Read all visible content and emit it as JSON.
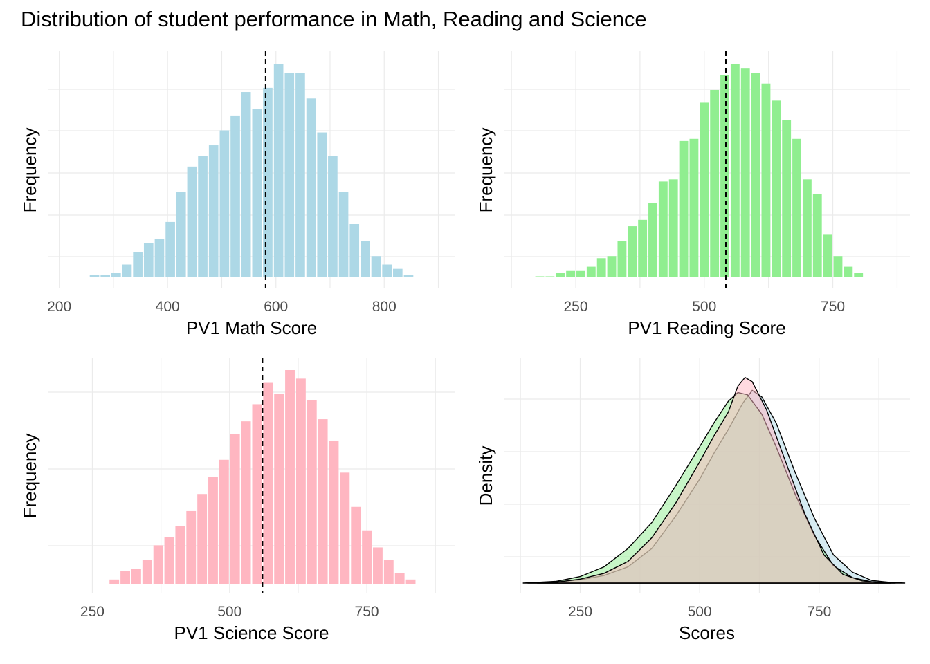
{
  "title": "Distribution of student performance in Math, Reading and Science",
  "chart_data": [
    {
      "type": "bar",
      "panel": "math",
      "xlabel": "PV1 Math Score",
      "ylabel": "Frequency",
      "color": "#add8e6",
      "mean_line": 581,
      "xticks": [
        200,
        400,
        600,
        800
      ],
      "xlim": [
        180,
        930
      ],
      "ylim": [
        0,
        1
      ],
      "bin_width": 20,
      "bin_starts": [
        255,
        275,
        295,
        315,
        335,
        355,
        375,
        395,
        415,
        435,
        455,
        475,
        495,
        515,
        535,
        555,
        575,
        595,
        615,
        635,
        655,
        675,
        695,
        715,
        735,
        755,
        775,
        795,
        815,
        835
      ],
      "values": [
        0.01,
        0.01,
        0.02,
        0.06,
        0.12,
        0.16,
        0.18,
        0.26,
        0.4,
        0.52,
        0.57,
        0.62,
        0.69,
        0.76,
        0.87,
        0.79,
        0.89,
        1.0,
        0.96,
        0.96,
        0.84,
        0.68,
        0.57,
        0.4,
        0.25,
        0.17,
        0.1,
        0.06,
        0.04,
        0.01
      ]
    },
    {
      "type": "bar",
      "panel": "reading",
      "xlabel": "PV1 Reading Score",
      "ylabel": "Frequency",
      "color": "#90ee90",
      "mean_line": 542,
      "xticks": [
        250,
        500,
        750
      ],
      "xlim": [
        110,
        900
      ],
      "ylim": [
        0,
        1
      ],
      "bin_width": 20,
      "bin_starts": [
        170,
        190,
        210,
        230,
        250,
        270,
        290,
        310,
        330,
        350,
        370,
        390,
        410,
        430,
        450,
        470,
        490,
        510,
        530,
        550,
        570,
        590,
        610,
        630,
        650,
        670,
        690,
        710,
        730,
        750,
        770,
        790
      ],
      "values": [
        0.005,
        0.005,
        0.02,
        0.03,
        0.03,
        0.05,
        0.09,
        0.1,
        0.17,
        0.24,
        0.27,
        0.35,
        0.45,
        0.46,
        0.64,
        0.65,
        0.82,
        0.88,
        0.95,
        1.0,
        0.98,
        0.96,
        0.91,
        0.83,
        0.74,
        0.65,
        0.46,
        0.39,
        0.2,
        0.1,
        0.05,
        0.02
      ]
    },
    {
      "type": "bar",
      "panel": "science",
      "xlabel": "PV1 Science Score",
      "ylabel": "Frequency",
      "color": "#ffb6c1",
      "mean_line": 560,
      "xticks": [
        250,
        500,
        750
      ],
      "xlim": [
        170,
        910
      ],
      "ylim": [
        0,
        1
      ],
      "bin_width": 20,
      "bin_starts": [
        280,
        300,
        320,
        340,
        360,
        380,
        400,
        420,
        440,
        460,
        480,
        500,
        520,
        540,
        560,
        580,
        600,
        620,
        640,
        660,
        680,
        700,
        720,
        740,
        760,
        780,
        800,
        820
      ],
      "values": [
        0.02,
        0.06,
        0.07,
        0.11,
        0.18,
        0.22,
        0.27,
        0.34,
        0.42,
        0.5,
        0.58,
        0.7,
        0.76,
        0.84,
        0.94,
        0.89,
        1.0,
        0.96,
        0.86,
        0.77,
        0.67,
        0.52,
        0.36,
        0.25,
        0.17,
        0.11,
        0.05,
        0.02
      ]
    },
    {
      "type": "area",
      "panel": "density",
      "xlabel": "Scores",
      "ylabel": "Density",
      "xticks": [
        250,
        500,
        750
      ],
      "xlim": [
        90,
        940
      ],
      "ylim": [
        0,
        1
      ],
      "series": [
        {
          "color": "#add8e6",
          "points": [
            [
              140,
              0
            ],
            [
              200,
              0.005
            ],
            [
              250,
              0.015
            ],
            [
              300,
              0.035
            ],
            [
              350,
              0.075
            ],
            [
              400,
              0.16
            ],
            [
              450,
              0.31
            ],
            [
              500,
              0.48
            ],
            [
              530,
              0.6
            ],
            [
              560,
              0.71
            ],
            [
              590,
              0.83
            ],
            [
              610,
              0.89
            ],
            [
              630,
              0.86
            ],
            [
              660,
              0.74
            ],
            [
              700,
              0.51
            ],
            [
              740,
              0.3
            ],
            [
              780,
              0.13
            ],
            [
              820,
              0.05
            ],
            [
              860,
              0.012
            ],
            [
              900,
              0.003
            ],
            [
              930,
              0
            ]
          ]
        },
        {
          "color": "#90ee90",
          "points": [
            [
              130,
              0
            ],
            [
              200,
              0.008
            ],
            [
              250,
              0.03
            ],
            [
              300,
              0.075
            ],
            [
              350,
              0.16
            ],
            [
              400,
              0.28
            ],
            [
              450,
              0.45
            ],
            [
              500,
              0.63
            ],
            [
              530,
              0.74
            ],
            [
              560,
              0.84
            ],
            [
              580,
              0.88
            ],
            [
              600,
              0.87
            ],
            [
              630,
              0.78
            ],
            [
              660,
              0.63
            ],
            [
              700,
              0.41
            ],
            [
              740,
              0.22
            ],
            [
              780,
              0.08
            ],
            [
              820,
              0.025
            ],
            [
              860,
              0.006
            ],
            [
              900,
              0
            ]
          ]
        },
        {
          "color": "#ffb6c1",
          "points": [
            [
              160,
              0
            ],
            [
              200,
              0.004
            ],
            [
              250,
              0.018
            ],
            [
              300,
              0.045
            ],
            [
              350,
              0.1
            ],
            [
              400,
              0.21
            ],
            [
              450,
              0.37
            ],
            [
              500,
              0.56
            ],
            [
              530,
              0.68
            ],
            [
              560,
              0.79
            ],
            [
              580,
              0.91
            ],
            [
              595,
              0.95
            ],
            [
              610,
              0.93
            ],
            [
              640,
              0.8
            ],
            [
              680,
              0.56
            ],
            [
              720,
              0.32
            ],
            [
              760,
              0.13
            ],
            [
              800,
              0.04
            ],
            [
              840,
              0.01
            ],
            [
              880,
              0.002
            ],
            [
              910,
              0
            ]
          ]
        }
      ]
    }
  ]
}
